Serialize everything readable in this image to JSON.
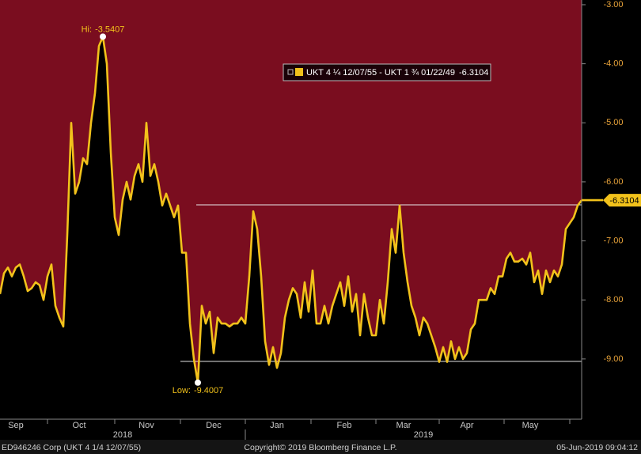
{
  "chart_data": {
    "type": "line",
    "categories": [
      null,
      null,
      null,
      null,
      "Sep",
      null,
      null,
      null,
      null,
      null,
      null,
      null,
      null,
      null,
      null,
      null,
      null,
      null,
      null,
      null,
      "Oct",
      null,
      null,
      null,
      null,
      null,
      null,
      null,
      null,
      null,
      null,
      null,
      null,
      null,
      null,
      null,
      null,
      "Nov",
      null,
      null,
      null,
      null,
      null,
      null,
      null,
      null,
      null,
      null,
      null,
      null,
      null,
      null,
      null,
      null,
      "Dec",
      null,
      null,
      null,
      null,
      null,
      null,
      null,
      null,
      null,
      null,
      null,
      null,
      null,
      null,
      null,
      "Jan",
      null,
      null,
      null,
      null,
      null,
      null,
      null,
      null,
      null,
      null,
      null,
      null,
      null,
      null,
      null,
      null,
      "Feb",
      null,
      null,
      null,
      null,
      null,
      null,
      null,
      null,
      null,
      null,
      null,
      null,
      null,
      null,
      "Mar",
      null,
      null,
      null,
      null,
      null,
      null,
      null,
      null,
      null,
      null,
      null,
      null,
      null,
      null,
      null,
      "Apr",
      null,
      null,
      null,
      null,
      null,
      null,
      null,
      null,
      null,
      null,
      null,
      null,
      null,
      null,
      null,
      "May",
      null,
      null,
      null,
      null,
      null,
      null,
      null,
      null,
      null,
      null,
      null,
      null,
      null
    ],
    "year_labels": [
      "2018",
      "2019"
    ],
    "series": [
      {
        "name": "UKT 4 ¼ 12/07/55 - UKT 1 ¾ 01/22/49",
        "color": "#f2c21b",
        "values": [
          -7.9,
          -7.55,
          -7.45,
          -7.6,
          -7.45,
          -7.4,
          -7.6,
          -7.85,
          -7.8,
          -7.7,
          -7.75,
          -8.0,
          -7.6,
          -7.4,
          -8.1,
          -8.3,
          -8.45,
          -6.9,
          -5.0,
          -6.2,
          -6.0,
          -5.6,
          -5.7,
          -5.0,
          -4.5,
          -3.7,
          -3.5407,
          -4.0,
          -5.5,
          -6.6,
          -6.9,
          -6.3,
          -6.0,
          -6.3,
          -5.9,
          -5.7,
          -6.0,
          -5.0,
          -5.9,
          -5.7,
          -6.0,
          -6.4,
          -6.2,
          -6.4,
          -6.6,
          -6.4,
          -7.2,
          -7.2,
          -8.4,
          -9.0,
          -9.4007,
          -8.1,
          -8.4,
          -8.2,
          -8.9,
          -8.3,
          -8.4,
          -8.4,
          -8.45,
          -8.4,
          -8.4,
          -8.3,
          -8.4,
          -7.6,
          -6.5,
          -6.8,
          -7.6,
          -8.7,
          -9.1,
          -8.8,
          -9.15,
          -8.9,
          -8.3,
          -8.0,
          -7.8,
          -7.9,
          -8.3,
          -7.7,
          -8.2,
          -7.5,
          -8.4,
          -8.4,
          -8.1,
          -8.4,
          -8.1,
          -7.9,
          -7.7,
          -8.1,
          -7.6,
          -8.2,
          -7.9,
          -8.6,
          -7.9,
          -8.3,
          -8.6,
          -8.6,
          -8.0,
          -8.4,
          -7.7,
          -6.8,
          -7.2,
          -6.4,
          -7.2,
          -7.7,
          -8.1,
          -8.3,
          -8.6,
          -8.3,
          -8.4,
          -8.6,
          -8.8,
          -9.05,
          -8.8,
          -9.05,
          -8.7,
          -9.0,
          -8.8,
          -9.0,
          -8.9,
          -8.5,
          -8.4,
          -8.0,
          -8.0,
          -8.0,
          -7.8,
          -7.9,
          -7.6,
          -7.6,
          -7.3,
          -7.2,
          -7.35,
          -7.35,
          -7.3,
          -7.4,
          -7.2,
          -7.7,
          -7.5,
          -7.9,
          -7.5,
          -7.7,
          -7.5,
          -7.6,
          -7.4,
          -6.8,
          -6.7,
          -6.6,
          -6.4,
          -6.3104
        ]
      }
    ],
    "hi_label": "Hi:",
    "low_label": "Low:",
    "reference_lines": [
      -6.39,
      -9.04
    ],
    "ylim": [
      -10.02,
      -2.92
    ],
    "yticks": [
      {
        "value": -3,
        "label": "-3.00"
      },
      {
        "value": -4,
        "label": "-4.00"
      },
      {
        "value": -5,
        "label": "-5.00"
      },
      {
        "value": -6,
        "label": "-6.00"
      },
      {
        "value": -7,
        "label": "-7.00"
      },
      {
        "value": -8,
        "label": "-8.00"
      },
      {
        "value": -9,
        "label": "-9.00"
      }
    ],
    "y_axis_side": "right",
    "footer": {
      "left": "ED946246 Corp (UKT 4 1/4 12/07/55)",
      "center": "Copyright© 2019 Bloomberg Finance L.P.",
      "right": "05-Jun-2019 09:04:12"
    }
  }
}
